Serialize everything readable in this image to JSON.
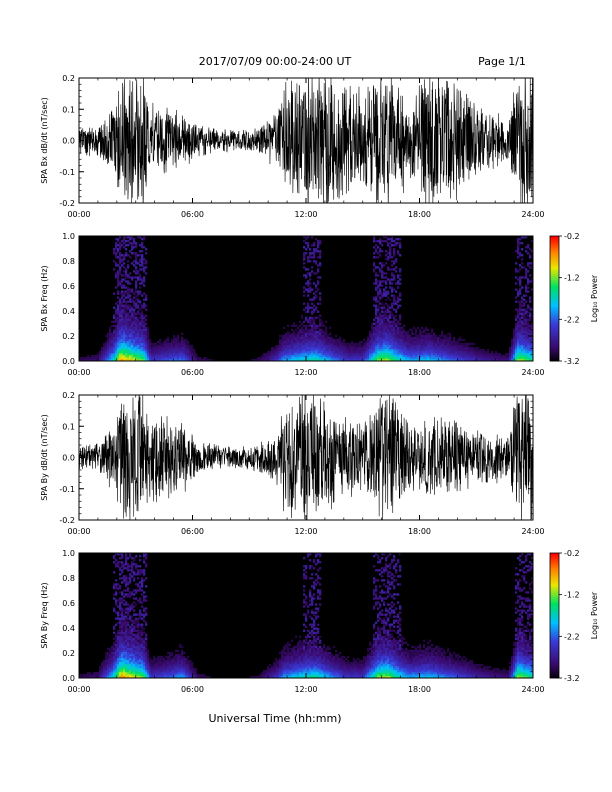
{
  "header": {
    "title": "2017/07/09   00:00-24:00 UT",
    "page": "Page 1/1"
  },
  "footer": {
    "xlabel": "Universal Time (hh:mm)"
  },
  "colors": {
    "trace": "#000000",
    "background": "#ffffff",
    "colormap": [
      "#000000",
      "#3a0a6e",
      "#3a3ad8",
      "#00c0ff",
      "#00e060",
      "#e8e800",
      "#ff8000",
      "#ff0000"
    ]
  },
  "chart_data": [
    {
      "type": "line",
      "ylabel": "SPA Bx dB/dt (nT/sec)",
      "xlim": [
        0,
        24
      ],
      "ylim": [
        -0.2,
        0.2
      ],
      "xticks": [
        "00:00",
        "06:00",
        "12:00",
        "18:00",
        "24:00"
      ],
      "yticks": [
        "0.2",
        "0.1",
        "0.0",
        "-0.1",
        "-0.2"
      ],
      "amplitude_profile": {
        "x": [
          0,
          1,
          1.9,
          2.2,
          3.4,
          3.8,
          4.5,
          5.5,
          6.3,
          7.5,
          8.5,
          9.5,
          10.5,
          10.8,
          11.8,
          12.5,
          13.3,
          14.2,
          15,
          15.8,
          16.3,
          16.8,
          17.5,
          18.5,
          19.5,
          20.5,
          21.5,
          22.7,
          23.2,
          24
        ],
        "y": [
          0.05,
          0.06,
          0.12,
          0.25,
          0.25,
          0.14,
          0.12,
          0.1,
          0.06,
          0.04,
          0.04,
          0.05,
          0.1,
          0.2,
          0.25,
          0.25,
          0.25,
          0.2,
          0.18,
          0.25,
          0.25,
          0.2,
          0.15,
          0.25,
          0.25,
          0.18,
          0.12,
          0.08,
          0.25,
          0.25
        ]
      }
    },
    {
      "type": "heatmap",
      "ylabel": "SPA Bx Freq (Hz)",
      "colorbar_label": "Log₁₀ Power",
      "colorbar_ticks": [
        "-0.2",
        "-1.2",
        "-2.2",
        "-3.2"
      ],
      "clim": [
        -3.2,
        -0.2
      ],
      "xlim": [
        0,
        24
      ],
      "ylim": [
        0,
        1
      ],
      "xticks": [
        "00:00",
        "06:00",
        "12:00",
        "18:00",
        "24:00"
      ],
      "yticks": [
        "1.0",
        "0.8",
        "0.6",
        "0.4",
        "0.2",
        "0.0"
      ],
      "activity_profile": {
        "x": [
          0,
          1,
          1.9,
          2.2,
          3.4,
          3.8,
          4.5,
          5.5,
          6.3,
          7.5,
          8.5,
          9.5,
          10.5,
          10.8,
          11.8,
          12.5,
          13.3,
          14.2,
          15,
          15.8,
          16.3,
          16.8,
          17.5,
          18.5,
          19.5,
          20.5,
          21.5,
          22.7,
          23.2,
          24
        ],
        "y": [
          0.1,
          0.15,
          0.6,
          0.9,
          0.7,
          0.3,
          0.35,
          0.4,
          0.12,
          0.05,
          0.05,
          0.1,
          0.3,
          0.45,
          0.55,
          0.6,
          0.45,
          0.3,
          0.3,
          0.7,
          0.75,
          0.6,
          0.45,
          0.5,
          0.4,
          0.3,
          0.2,
          0.15,
          0.75,
          0.6
        ]
      }
    },
    {
      "type": "line",
      "ylabel": "SPA By dB/dt (nT/sec)",
      "xlim": [
        0,
        24
      ],
      "ylim": [
        -0.2,
        0.2
      ],
      "xticks": [
        "00:00",
        "06:00",
        "12:00",
        "18:00",
        "24:00"
      ],
      "yticks": [
        "0.2",
        "0.1",
        "0.0",
        "-0.1",
        "-0.2"
      ],
      "amplitude_profile": {
        "x": [
          0,
          1,
          1.9,
          2.2,
          3.4,
          3.8,
          4.5,
          5.5,
          6.3,
          7.5,
          8.5,
          9.5,
          10.5,
          10.8,
          11.8,
          12.5,
          13.3,
          14.2,
          15,
          15.8,
          16.3,
          16.8,
          17.5,
          18.5,
          19.5,
          20.5,
          21.5,
          22.7,
          23.2,
          24
        ],
        "y": [
          0.04,
          0.05,
          0.12,
          0.25,
          0.25,
          0.15,
          0.15,
          0.12,
          0.06,
          0.04,
          0.04,
          0.05,
          0.1,
          0.18,
          0.25,
          0.25,
          0.2,
          0.15,
          0.12,
          0.2,
          0.25,
          0.2,
          0.12,
          0.15,
          0.14,
          0.12,
          0.1,
          0.08,
          0.25,
          0.25
        ]
      }
    },
    {
      "type": "heatmap",
      "ylabel": "SPA By Freq (Hz)",
      "colorbar_label": "Log₁₀ Power",
      "colorbar_ticks": [
        "-0.2",
        "-1.2",
        "-2.2",
        "-3.2"
      ],
      "clim": [
        -3.2,
        -0.2
      ],
      "xlim": [
        0,
        24
      ],
      "ylim": [
        0,
        1
      ],
      "xticks": [
        "00:00",
        "06:00",
        "12:00",
        "18:00",
        "24:00"
      ],
      "yticks": [
        "1.0",
        "0.8",
        "0.6",
        "0.4",
        "0.2",
        "0.0"
      ],
      "activity_profile": {
        "x": [
          0,
          1,
          1.9,
          2.2,
          3.4,
          3.8,
          4.5,
          5.5,
          6.3,
          7.5,
          8.5,
          9.5,
          10.5,
          10.8,
          11.8,
          12.5,
          13.3,
          14.2,
          15,
          15.8,
          16.3,
          16.8,
          17.5,
          18.5,
          19.5,
          20.5,
          21.5,
          22.7,
          23.2,
          24
        ],
        "y": [
          0.1,
          0.15,
          0.6,
          0.9,
          0.7,
          0.3,
          0.35,
          0.45,
          0.12,
          0.05,
          0.05,
          0.1,
          0.3,
          0.45,
          0.55,
          0.6,
          0.45,
          0.3,
          0.3,
          0.7,
          0.75,
          0.6,
          0.45,
          0.5,
          0.4,
          0.3,
          0.2,
          0.15,
          0.75,
          0.6
        ]
      }
    }
  ]
}
